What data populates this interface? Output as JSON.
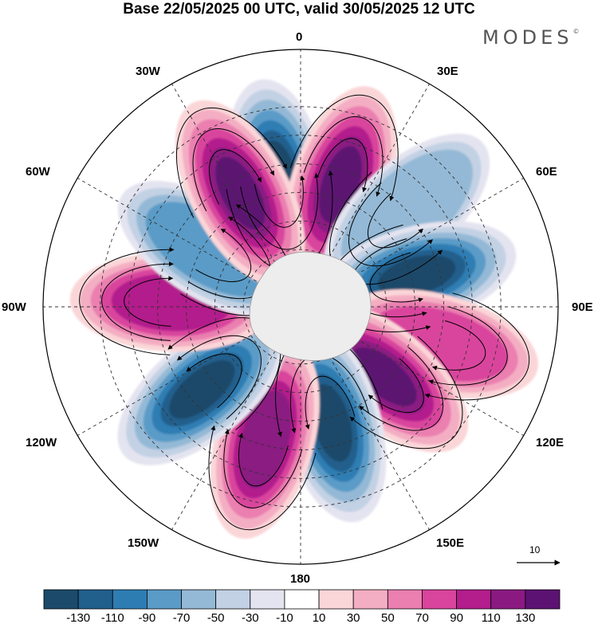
{
  "title": "Base 22/05/2025 00 UTC, valid 30/05/2025 12 UTC",
  "brand": "MODES",
  "brand_mark": "©",
  "labels": {
    "lon_0": "0",
    "lon_30e": "30E",
    "lon_60e": "60E",
    "lon_90e": "90E",
    "lon_120e": "120E",
    "lon_150e": "150E",
    "lon_180": "180",
    "lon_150w": "150W",
    "lon_120w": "120W",
    "lon_90w": "90W",
    "lon_60w": "60W",
    "lon_30w": "30W"
  },
  "reference_vector": "10",
  "colorbar": {
    "ticks": [
      "-130",
      "-110",
      "-90",
      "-70",
      "-50",
      "-30",
      "-10",
      "10",
      "30",
      "50",
      "70",
      "90",
      "110",
      "130"
    ],
    "colors": [
      "#1b4a6b",
      "#215f8c",
      "#2d7db3",
      "#5a9bc7",
      "#94b9d6",
      "#c2d1e4",
      "#e4e4f0",
      "#ffffff",
      "#fbd6d8",
      "#f4aec3",
      "#ea7fb0",
      "#d9449d",
      "#b31d8c",
      "#8a1a82",
      "#5c1272"
    ]
  },
  "map_data": {
    "projection": "south-polar-stereographic",
    "field": "anomaly",
    "anomaly_centers": [
      {
        "lon": -10,
        "lat": -45,
        "value": -140
      },
      {
        "lon": 18,
        "lat": -45,
        "value": 135
      },
      {
        "lon": 48,
        "lat": -40,
        "value": -60
      },
      {
        "lon": 75,
        "lat": -48,
        "value": -130
      },
      {
        "lon": 105,
        "lat": -40,
        "value": 70
      },
      {
        "lon": 130,
        "lat": -52,
        "value": 130
      },
      {
        "lon": 165,
        "lat": -48,
        "value": -140
      },
      {
        "lon": -165,
        "lat": -42,
        "value": 120
      },
      {
        "lon": -130,
        "lat": -45,
        "value": -140
      },
      {
        "lon": -88,
        "lat": -45,
        "value": 100
      },
      {
        "lon": -58,
        "lat": -52,
        "value": -80
      },
      {
        "lon": -28,
        "lat": -45,
        "value": 135
      }
    ]
  }
}
